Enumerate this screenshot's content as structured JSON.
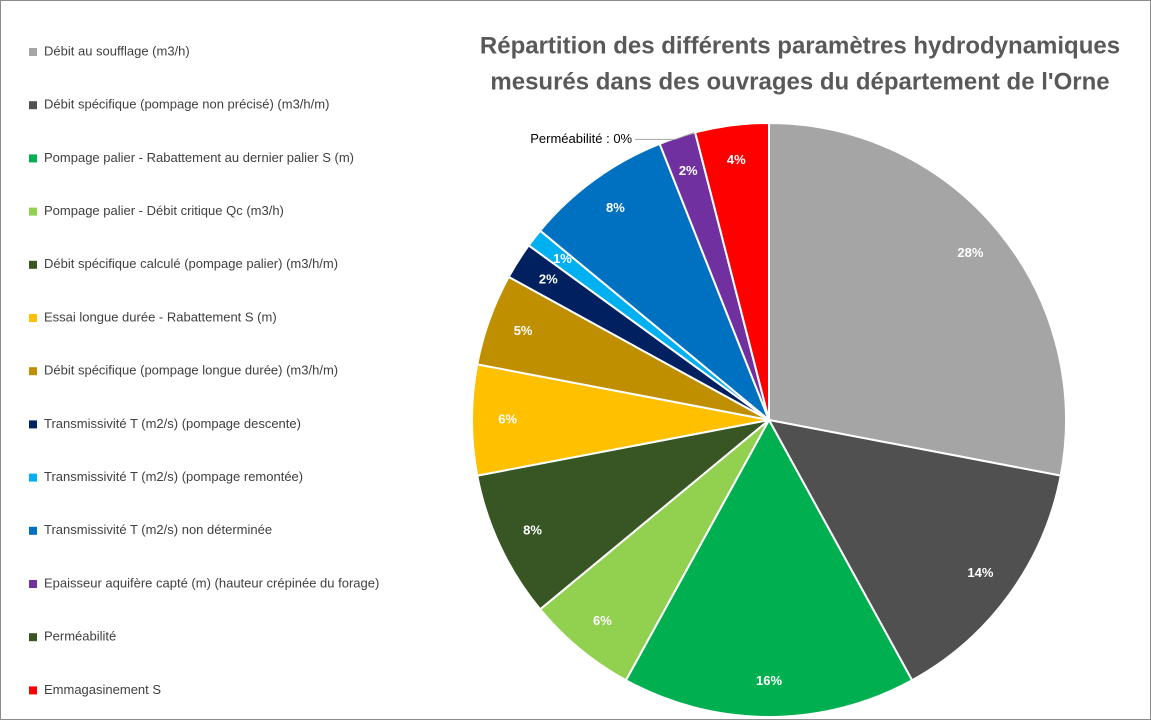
{
  "chart_data": {
    "type": "pie",
    "title": [
      "Répartition des différents paramètres hydrodynamiques",
      "mesurés dans des ouvrages du département de l'Orne"
    ],
    "categories": [
      "Débit au soufflage (m3/h)",
      "Débit spécifique (pompage non précisé) (m3/h/m)",
      "Pompage palier - Rabattement au dernier palier S (m)",
      "Pompage palier - Débit critique Qc (m3/h)",
      "Débit spécifique calculé (pompage palier) (m3/h/m)",
      "Essai longue durée - Rabattement S (m)",
      "Débit spécifique (pompage longue durée) (m3/h/m)",
      "Transmissivité T (m2/s) (pompage descente)",
      "Transmissivité T (m2/s) (pompage remontée)",
      "Transmissivité T (m2/s) non déterminée",
      "Epaisseur aquifère capté (m) (hauteur crépinée du forage)",
      "Perméabilité",
      "Emmagasinement S"
    ],
    "values": [
      28,
      14,
      16,
      6,
      8,
      6,
      5,
      2,
      1,
      8,
      2,
      0,
      4
    ],
    "value_labels": [
      "28%",
      "14%",
      "16%",
      "6%",
      "8%",
      "6%",
      "5%",
      "2%",
      "1%",
      "8%",
      "2%",
      "Perméabilité : 0%",
      "4%"
    ],
    "colors": [
      "#a5a5a5",
      "#505050",
      "#00b050",
      "#92d050",
      "#375623",
      "#ffc000",
      "#bf8f00",
      "#002060",
      "#00b0f0",
      "#0070c0",
      "#7030a0",
      "#375623",
      "#ff0000"
    ],
    "legend": "left"
  }
}
